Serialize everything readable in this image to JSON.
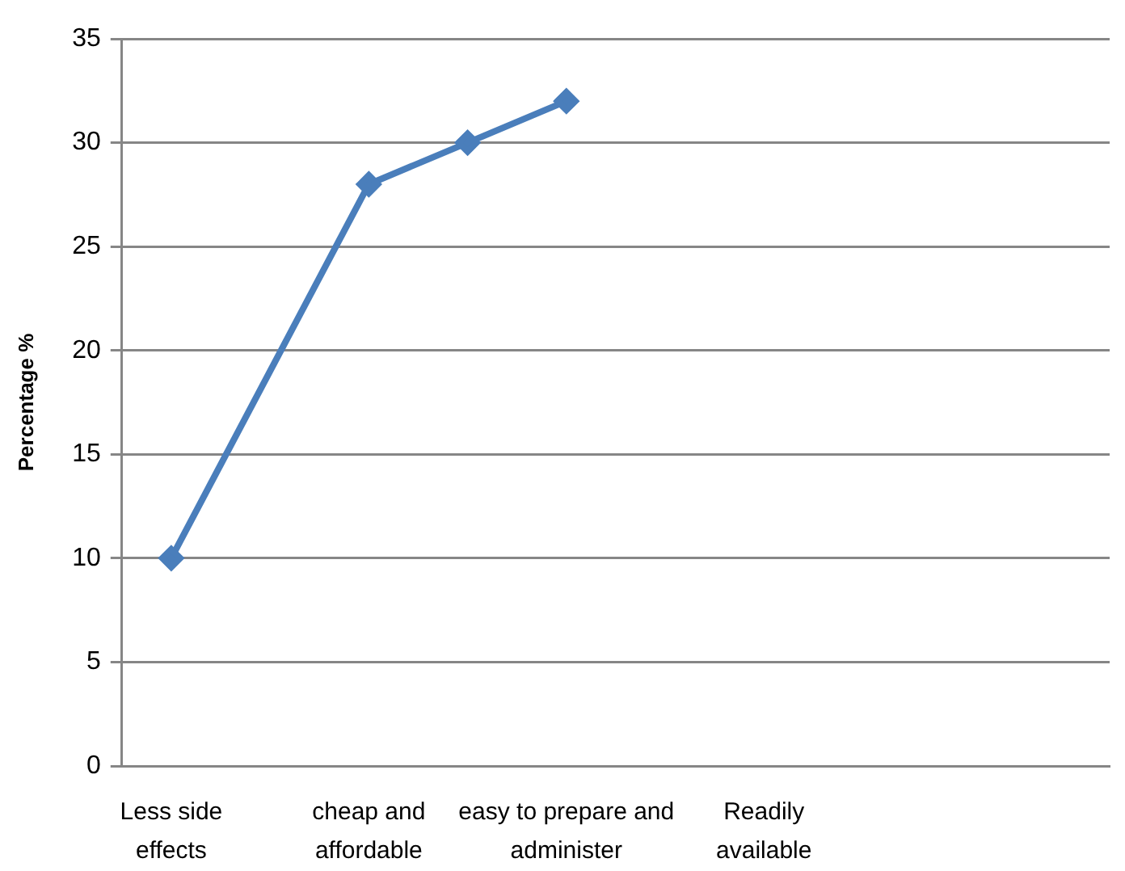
{
  "chart_data": {
    "type": "line",
    "ylabel": "Percentage %",
    "categories": [
      "Less side effects",
      null,
      "cheap and affordable",
      null,
      "easy to prepare and administer",
      null,
      "Readily available",
      null,
      null,
      null
    ],
    "series": [
      {
        "color": "#4a7ebb",
        "values": [
          10,
          null,
          28,
          30,
          32,
          null,
          null,
          null,
          null,
          null
        ]
      }
    ],
    "ylim": [
      0,
      35
    ],
    "yticks": [
      0,
      5,
      10,
      15,
      20,
      25,
      30,
      35
    ],
    "grid": "y",
    "marker": "diamond",
    "line_style": "solid",
    "legend": false
  }
}
